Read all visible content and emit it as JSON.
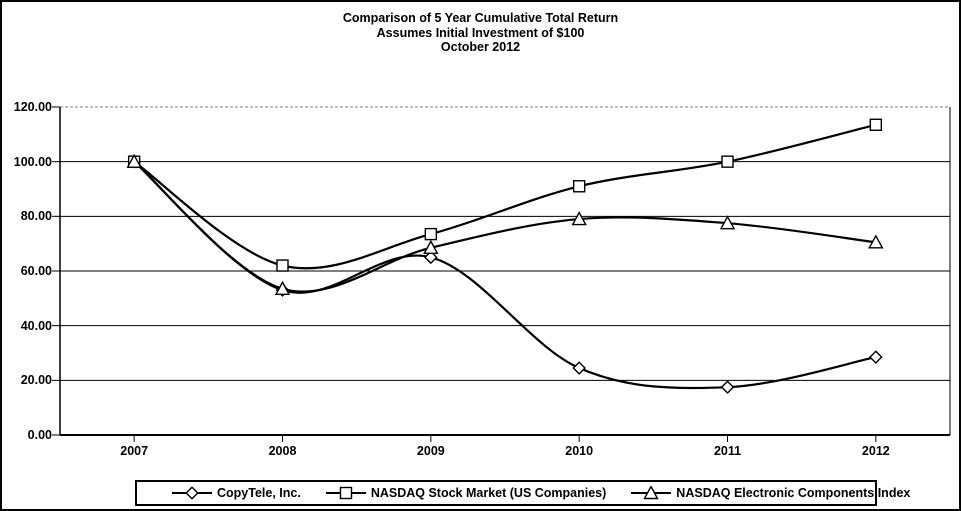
{
  "title": {
    "line1": "Comparison of 5 Year Cumulative Total Return",
    "line2": "Assumes Initial Investment of $100",
    "line3": "October 2012"
  },
  "chart_data": {
    "type": "line",
    "smooth": true,
    "categories": [
      "2007",
      "2008",
      "2009",
      "2010",
      "2011",
      "2012"
    ],
    "series": [
      {
        "name": "CopyTele, Inc.",
        "marker": "diamond",
        "values": [
          100.0,
          53.0,
          65.0,
          24.5,
          17.5,
          28.5
        ]
      },
      {
        "name": "NASDAQ Stock Market (US Companies)",
        "marker": "square",
        "values": [
          100.0,
          62.0,
          73.5,
          91.0,
          100.0,
          113.5
        ]
      },
      {
        "name": "NASDAQ Electronic Components Index",
        "marker": "triangle",
        "values": [
          100.0,
          53.5,
          68.5,
          79.0,
          77.5,
          70.5
        ]
      }
    ],
    "xlabel": "",
    "ylabel": "",
    "ylim": [
      0,
      120
    ],
    "ytick_step": 20,
    "ytick_labels": [
      "120.00",
      "100.00",
      "80.00",
      "60.00",
      "40.00",
      "20.00",
      "0.00"
    ],
    "grid": true,
    "legend_position": "bottom"
  },
  "colors": {
    "line": "#000000",
    "grid": "#000000",
    "plot_top_border": "#808080",
    "background": "#ffffff"
  }
}
